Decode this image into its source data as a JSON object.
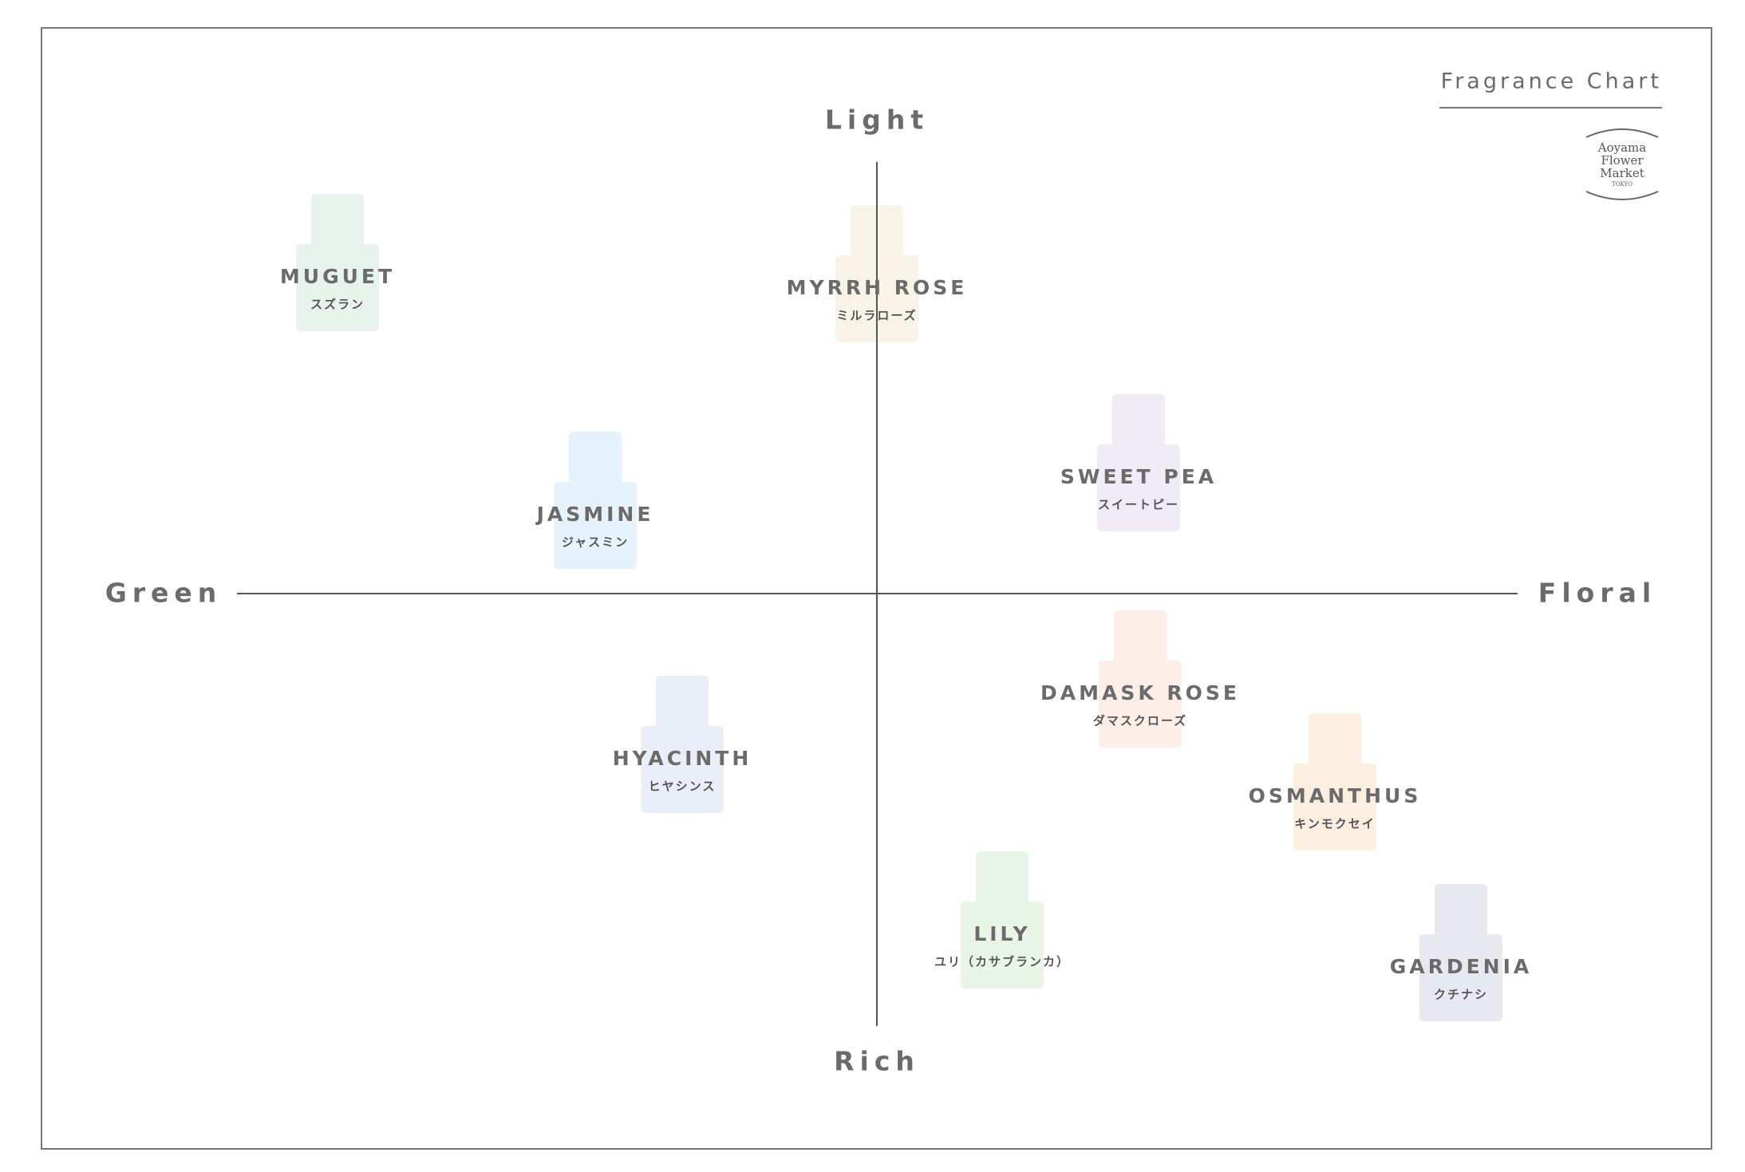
{
  "header": {
    "title": "Fragrance Chart",
    "logo": [
      "Aoyama",
      "Flower",
      "Market",
      "TOKYO"
    ]
  },
  "axes": {
    "top": "Light",
    "bottom": "Rich",
    "left": "Green",
    "right": "Floral"
  },
  "items": [
    {
      "name": "MUGUET",
      "name_ja": "スズラン",
      "color": "#e8f3ee"
    },
    {
      "name": "MYRRH ROSE",
      "name_ja": "ミルラローズ",
      "color": "#f7f3e6"
    },
    {
      "name": "SWEET PEA",
      "name_ja": "スイートピー",
      "color": "#f1ebf5"
    },
    {
      "name": "JASMINE",
      "name_ja": "ジャスミン",
      "color": "#e6f3fc"
    },
    {
      "name": "DAMASK ROSE",
      "name_ja": "ダマスクローズ",
      "color": "#fdeee8"
    },
    {
      "name": "HYACINTH",
      "name_ja": "ヒヤシンス",
      "color": "#e9eef9"
    },
    {
      "name": "OSMANTHUS",
      "name_ja": "キンモクセイ",
      "color": "#fdefe0"
    },
    {
      "name": "LILY",
      "name_ja": "ユリ（カサブランカ）",
      "color": "#eaf5e9"
    },
    {
      "name": "GARDENIA",
      "name_ja": "クチナシ",
      "color": "#e8e9f0"
    }
  ]
}
